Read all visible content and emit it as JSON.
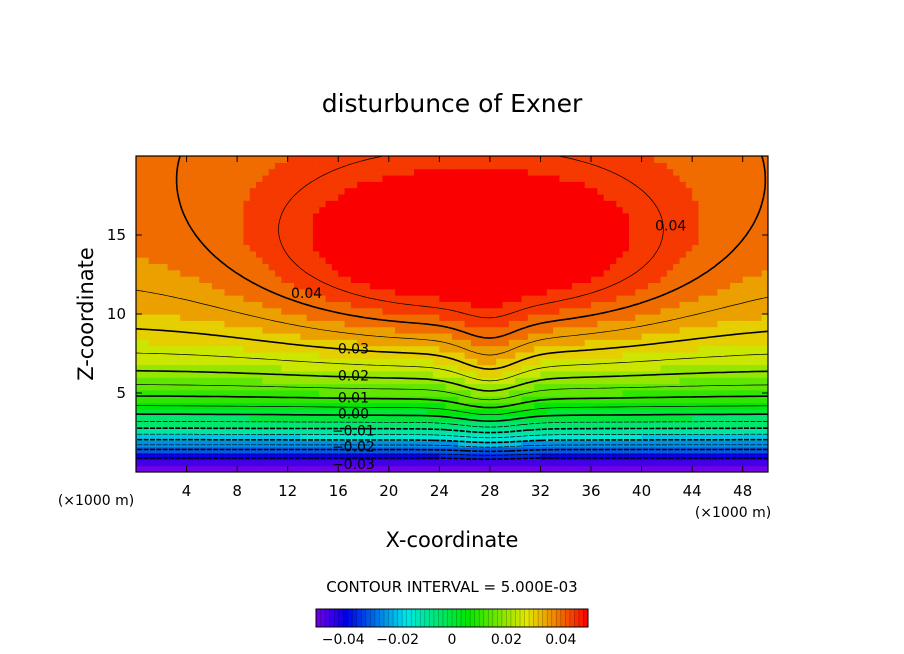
{
  "chart_data": {
    "type": "heatmap",
    "title": "disturbunce of Exner",
    "xlabel": "X-coordinate",
    "ylabel": "Z-coordinate",
    "x_unit": "(×1000 m)",
    "y_unit": "(×1000 m)",
    "xlim": [
      0,
      50
    ],
    "ylim": [
      0,
      20
    ],
    "x_ticks": [
      4,
      8,
      12,
      16,
      20,
      24,
      28,
      32,
      36,
      40,
      44,
      48
    ],
    "y_ticks": [
      5,
      10,
      15
    ],
    "contour_interval_text": "CONTOUR INTERVAL = 5.000E-03",
    "contour_levels": [
      -0.04,
      -0.035,
      -0.03,
      -0.025,
      -0.02,
      -0.015,
      -0.01,
      -0.005,
      0,
      0.005,
      0.01,
      0.015,
      0.02,
      0.025,
      0.03,
      0.035,
      0.04,
      0.045
    ],
    "contour_labels": [
      {
        "text": "0.04",
        "x": 13.5,
        "y": 11.0
      },
      {
        "text": "0.04",
        "x": 42.3,
        "y": 15.3
      },
      {
        "text": "0.03",
        "x": 17.2,
        "y": 7.5
      },
      {
        "text": "0.02",
        "x": 17.2,
        "y": 5.8
      },
      {
        "text": "0.01",
        "x": 17.2,
        "y": 4.4
      },
      {
        "text": "0.00",
        "x": 17.2,
        "y": 3.4
      },
      {
        "text": "−0.01",
        "x": 17.2,
        "y": 2.3
      },
      {
        "text": "−0.02",
        "x": 17.2,
        "y": 1.3
      },
      {
        "text": "−0.03",
        "x": 17.2,
        "y": 0.2
      }
    ],
    "colorbar": {
      "range": [
        -0.05,
        0.05
      ],
      "tick_values": [
        -0.04,
        -0.02,
        0,
        0.02,
        0.04
      ],
      "tick_labels": [
        "−0.04",
        "−0.02",
        "0",
        "0.02",
        "0.04"
      ]
    }
  }
}
